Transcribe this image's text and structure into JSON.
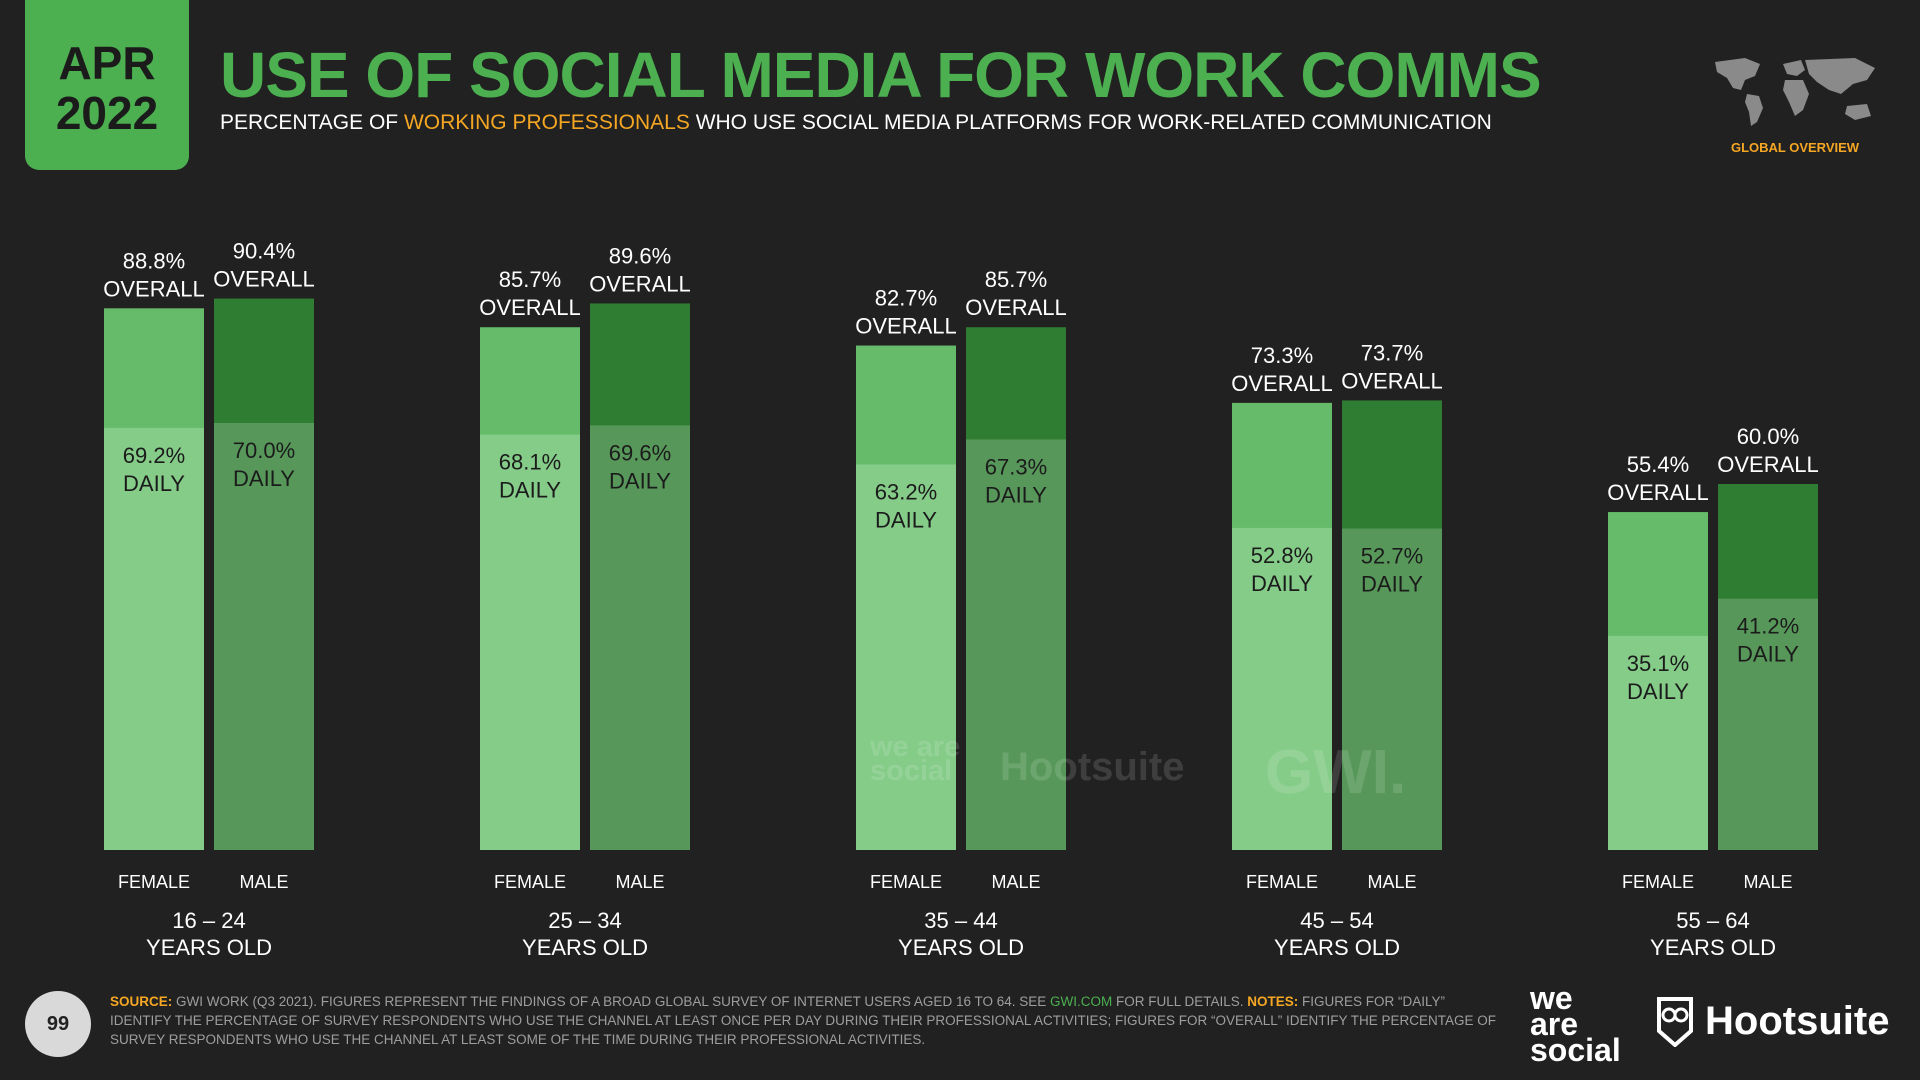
{
  "header": {
    "month": "APR",
    "year": "2022",
    "title": "USE OF SOCIAL MEDIA FOR WORK COMMS",
    "subtitle_pre": "PERCENTAGE OF ",
    "subtitle_highlight": "WORKING PROFESSIONALS",
    "subtitle_post": " WHO USE SOCIAL MEDIA PLATFORMS FOR WORK-RELATED COMMUNICATION",
    "global_label": "GLOBAL OVERVIEW"
  },
  "colors": {
    "background": "#212121",
    "accent_green": "#4caf50",
    "accent_orange": "#f5a623",
    "female_overall": "#66bb6a",
    "female_daily": "#85cc89",
    "male_overall": "#2e7d32",
    "male_daily": "#57985a"
  },
  "chart_data": {
    "type": "bar",
    "title": "USE OF SOCIAL MEDIA FOR WORK COMMS",
    "ylim": [
      0,
      100
    ],
    "overall_suffix": "OVERALL",
    "daily_suffix": "DAILY",
    "groups": [
      {
        "label_top": "16 – 24",
        "label_bottom": "YEARS OLD",
        "bars": [
          {
            "label": "FEMALE",
            "overall": 88.8,
            "daily": 69.2
          },
          {
            "label": "MALE",
            "overall": 90.4,
            "daily": 70.0
          }
        ]
      },
      {
        "label_top": "25 – 34",
        "label_bottom": "YEARS OLD",
        "bars": [
          {
            "label": "FEMALE",
            "overall": 85.7,
            "daily": 68.1
          },
          {
            "label": "MALE",
            "overall": 89.6,
            "daily": 69.6
          }
        ]
      },
      {
        "label_top": "35 – 44",
        "label_bottom": "YEARS OLD",
        "bars": [
          {
            "label": "FEMALE",
            "overall": 82.7,
            "daily": 63.2
          },
          {
            "label": "MALE",
            "overall": 85.7,
            "daily": 67.3
          }
        ]
      },
      {
        "label_top": "45 – 54",
        "label_bottom": "YEARS OLD",
        "bars": [
          {
            "label": "FEMALE",
            "overall": 73.3,
            "daily": 52.8
          },
          {
            "label": "MALE",
            "overall": 73.7,
            "daily": 52.7
          }
        ]
      },
      {
        "label_top": "55 – 64",
        "label_bottom": "YEARS OLD",
        "bars": [
          {
            "label": "FEMALE",
            "overall": 55.4,
            "daily": 35.1
          },
          {
            "label": "MALE",
            "overall": 60.0,
            "daily": 41.2
          }
        ]
      }
    ]
  },
  "watermark": {
    "wearesocial": "we are social",
    "hootsuite": "Hootsuite",
    "gwi": "GWI."
  },
  "footer": {
    "page_number": "99",
    "source_label": "SOURCE:",
    "source_text": " GWI WORK (Q3 2021). FIGURES REPRESENT THE FINDINGS OF A BROAD GLOBAL SURVEY OF INTERNET USERS AGED 16 TO 64. SEE ",
    "source_link": "GWI.COM",
    "source_text_2": " FOR FULL DETAILS. ",
    "notes_label": "NOTES:",
    "notes_text": " FIGURES FOR “DAILY” IDENTIFY THE PERCENTAGE OF SURVEY RESPONDENTS WHO USE THE CHANNEL AT LEAST ONCE PER DAY DURING THEIR PROFESSIONAL ACTIVITIES; FIGURES FOR “OVERALL” IDENTIFY THE PERCENTAGE OF SURVEY RESPONDENTS WHO USE THE CHANNEL AT LEAST SOME OF THE TIME DURING THEIR PROFESSIONAL ACTIVITIES.",
    "logo_we": "we",
    "logo_are": "are",
    "logo_social": "social",
    "logo_hootsuite": "Hootsuite"
  }
}
